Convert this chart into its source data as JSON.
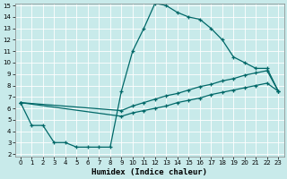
{
  "xlabel": "Humidex (Indice chaleur)",
  "bg_color": "#c8eaea",
  "line_color": "#006868",
  "grid_color": "#ffffff",
  "ylim": [
    2,
    15
  ],
  "xlim": [
    -0.5,
    23.5
  ],
  "yticks": [
    2,
    3,
    4,
    5,
    6,
    7,
    8,
    9,
    10,
    11,
    12,
    13,
    14,
    15
  ],
  "xticks": [
    0,
    1,
    2,
    3,
    4,
    5,
    6,
    7,
    8,
    9,
    10,
    11,
    12,
    13,
    14,
    15,
    16,
    17,
    18,
    19,
    20,
    21,
    22,
    23
  ],
  "line1_x": [
    0,
    1,
    2,
    3,
    4,
    5,
    6,
    7,
    8,
    9,
    10,
    11,
    12,
    13,
    14,
    15,
    16,
    17,
    18,
    19,
    20,
    21,
    22,
    23
  ],
  "line1_y": [
    6.5,
    4.5,
    4.5,
    3.0,
    3.0,
    2.6,
    2.6,
    2.6,
    2.6,
    7.5,
    11.0,
    13.0,
    15.2,
    15.0,
    14.4,
    14.0,
    13.8,
    13.0,
    12.0,
    10.5,
    10.0,
    9.5,
    9.5,
    7.5
  ],
  "line2_x": [
    0,
    9,
    10,
    11,
    12,
    13,
    14,
    15,
    16,
    17,
    18,
    19,
    20,
    21,
    22,
    23
  ],
  "line2_y": [
    6.5,
    5.8,
    6.2,
    6.5,
    6.8,
    7.1,
    7.3,
    7.6,
    7.9,
    8.1,
    8.4,
    8.6,
    8.9,
    9.1,
    9.3,
    7.5
  ],
  "line3_x": [
    0,
    9,
    10,
    11,
    12,
    13,
    14,
    15,
    16,
    17,
    18,
    19,
    20,
    21,
    22,
    23
  ],
  "line3_y": [
    6.5,
    5.3,
    5.6,
    5.8,
    6.0,
    6.2,
    6.5,
    6.7,
    6.9,
    7.2,
    7.4,
    7.6,
    7.8,
    8.0,
    8.2,
    7.5
  ]
}
